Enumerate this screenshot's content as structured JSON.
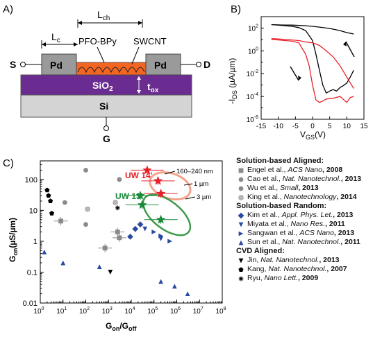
{
  "panel_a": {
    "label": "A)",
    "lch": "L",
    "lch_sub": "ch",
    "lc": "L",
    "lc_sub": "c",
    "pfo": "PFO-BPy",
    "swcnt": "SWCNT",
    "s": "S",
    "d": "D",
    "g": "G",
    "pd_left": "Pd",
    "pd_right": "Pd",
    "sio2": "SiO",
    "sio2_sub": "2",
    "tox": "t",
    "tox_sub": "ox",
    "si": "Si",
    "colors": {
      "pd": "#9a9a9a",
      "channel": "#f26522",
      "oxide": "#6b2c91",
      "si": "#d4d4d4"
    }
  },
  "panel_b": {
    "label": "B)",
    "ylabel": "-I",
    "ylabel_sub": "DS",
    "ylabel_unit": " (µA/µm)",
    "xlabel": "V",
    "xlabel_sub": "GS",
    "xlabel_unit": "(V)",
    "xticks": [
      "-15",
      "-10",
      "-5",
      "0",
      "5",
      "10",
      "15"
    ],
    "yticks": [
      {
        "base": "10",
        "exp": "2"
      },
      {
        "base": "10",
        "exp": "0"
      },
      {
        "base": "10",
        "exp": "-2"
      },
      {
        "base": "10",
        "exp": "-4"
      },
      {
        "base": "10",
        "exp": "-6"
      }
    ],
    "colors": {
      "black": "#000000",
      "red": "#e8202a"
    }
  },
  "panel_c": {
    "label": "C)",
    "ylabel": "G",
    "ylabel_sub": "on",
    "ylabel_unit": "(µS/µm)",
    "xlabel": "G",
    "xlabel_sub1": "on",
    "xlabel_mid": "/G",
    "xlabel_sub2": "off",
    "yticks": [
      "100",
      "10",
      "1",
      "0.1",
      "0.01"
    ],
    "xticks": [
      {
        "base": "10",
        "exp": "0"
      },
      {
        "base": "10",
        "exp": "1"
      },
      {
        "base": "10",
        "exp": "2"
      },
      {
        "base": "10",
        "exp": "3"
      },
      {
        "base": "10",
        "exp": "4"
      },
      {
        "base": "10",
        "exp": "5"
      },
      {
        "base": "10",
        "exp": "6"
      },
      {
        "base": "10",
        "exp": "7"
      },
      {
        "base": "10",
        "exp": "8"
      }
    ],
    "annotations": {
      "uw14": "UW 14'",
      "uw13": "UW 13'",
      "len1": "160–240 nm",
      "len2": "1 µm",
      "len3": "3 µm"
    },
    "colors": {
      "uw14": "#e8202a",
      "uw13": "#1a8a3a",
      "blue": "#2a4aa0",
      "gray": "#8a8a8a",
      "ellipse_red": "#f4a38a",
      "ellipse_green": "#3d9a4a"
    }
  },
  "legend": {
    "groups": [
      {
        "title": "Solution-based Aligned:",
        "entries": [
          {
            "marker": "square-gray",
            "author": "Engel et al., ",
            "journal": "ACS Nano",
            "year": ", 2008"
          },
          {
            "marker": "circle-gray",
            "author": "Cao et al., ",
            "journal": "Nat. Nanotechnol.",
            "year": ", 2013"
          },
          {
            "marker": "circle-gray",
            "author": "Wu et al., ",
            "journal": "Small",
            "year": ", 2013"
          },
          {
            "marker": "circle-lightgray",
            "author": "King et al., ",
            "journal": "Nanotechnology",
            "year": ", 2014"
          }
        ]
      },
      {
        "title": "Solution-based Random:",
        "entries": [
          {
            "marker": "diamond-blue",
            "author": "Kim et al., ",
            "journal": "Appl. Phys. Let.",
            "year": ", 2013"
          },
          {
            "marker": "triangle-down-blue",
            "author": "Miyata et al., ",
            "journal": "Nano Res.",
            "year": ", 2011"
          },
          {
            "marker": "triangle-right-blue",
            "author": "Sangwan et al., ",
            "journal": "ACS Nano",
            "year": ", 2013"
          },
          {
            "marker": "triangle-up-blue",
            "author": "Sun et al., ",
            "journal": "Nat. Nanotechnol.",
            "year": ", 2011"
          }
        ]
      },
      {
        "title": "CVD Aligned:",
        "entries": [
          {
            "marker": "triangle-down-black",
            "author": "Jin, ",
            "journal": "Nat. Nanotechnol.",
            "year": ", 2013"
          },
          {
            "marker": "pentagon-black",
            "author": "Kang, ",
            "journal": "Nat. Nanotechnol.",
            "year": ", 2007"
          },
          {
            "marker": "asterisk-black",
            "author": "Ryu, ",
            "journal": "Nano Lett.",
            "year": ", 2009"
          }
        ]
      }
    ]
  },
  "chart_data": [
    {
      "type": "line",
      "xlabel": "V_GS(V)",
      "ylabel": "-I_DS (µA/µm)",
      "xlim": [
        -15,
        15
      ],
      "ylim_log10": [
        -6,
        3
      ],
      "yscale": "log",
      "series": [
        {
          "color": "black",
          "x": [
            -12,
            -10,
            -8,
            -6,
            -4,
            -2,
            0,
            1,
            2,
            3,
            4,
            5,
            6,
            7,
            8,
            9,
            10,
            11,
            12
          ],
          "y": [
            200,
            180,
            160,
            140,
            110,
            60,
            8,
            0.5,
            0.02,
            0.001,
            0.0002,
            0.0003,
            0.0004,
            0.0003,
            0.0006,
            0.0009,
            0.0015,
            0.005,
            0.02
          ]
        },
        {
          "color": "black",
          "x": [
            -12,
            -10,
            -8,
            -6,
            -4,
            -2,
            0,
            2,
            4,
            6,
            8,
            10,
            12
          ],
          "y": [
            200,
            190,
            185,
            180,
            170,
            160,
            140,
            120,
            100,
            80,
            60,
            40,
            30
          ]
        },
        {
          "color": "red",
          "x": [
            -12,
            -10,
            -8,
            -6,
            -4,
            -2,
            -1,
            0,
            1,
            2,
            3,
            4,
            6,
            8,
            10,
            11,
            12
          ],
          "y": [
            10,
            9,
            8,
            7,
            5,
            0.5,
            0.05,
            0.001,
            5e-05,
            3e-05,
            4e-05,
            6e-05,
            7e-05,
            0.0001,
            3e-05,
            8e-05,
            0.0001
          ]
        },
        {
          "color": "red",
          "x": [
            -12,
            -10,
            -8,
            -6,
            -4,
            -2,
            0,
            2,
            4,
            6,
            8,
            10,
            12
          ],
          "y": [
            12,
            11,
            10,
            9,
            8,
            6,
            5,
            3,
            1,
            0.3,
            0.05,
            0.005,
            0.0005
          ]
        }
      ]
    },
    {
      "type": "scatter",
      "xlabel": "G_on/G_off",
      "ylabel": "G_on(µS/µm)",
      "xscale": "log",
      "yscale": "log",
      "xlim": [
        1,
        100000000
      ],
      "ylim": [
        0.01,
        400
      ],
      "series": [
        {
          "name": "UW 14'",
          "marker": "star-red",
          "x": [
            50000,
            150000,
            200000
          ],
          "y": [
            200,
            90,
            35
          ]
        },
        {
          "name": "UW 13'",
          "marker": "star-green",
          "x": [
            25000,
            30000,
            200000
          ],
          "y": [
            30,
            15,
            5
          ]
        },
        {
          "name": "Engel et al., ACS Nano, 2008",
          "marker": "square-gray",
          "x": [
            8,
            2500,
            3000,
            700
          ],
          "y": [
            4.5,
            2,
            1.3,
            0.6
          ]
        },
        {
          "name": "Cao et al., Nat. Nanotechnol., 2013",
          "marker": "circle-gray",
          "x": [
            100,
            3000
          ],
          "y": [
            200,
            100
          ]
        },
        {
          "name": "Wu et al., Small, 2013",
          "marker": "circle-gray",
          "x": [
            12,
            100
          ],
          "y": [
            18,
            3.5
          ]
        },
        {
          "name": "King et al., Nanotechnology, 2014",
          "marker": "circle-lightgray",
          "x": [
            2000,
            120
          ],
          "y": [
            18,
            11
          ]
        },
        {
          "name": "Kim et al., Appl. Phys. Let., 2013",
          "marker": "diamond-blue",
          "x": [
            25000,
            15000,
            9000
          ],
          "y": [
            3.5,
            2.5,
            1.4
          ]
        },
        {
          "name": "Miyata et al., Nano Res., 2011",
          "marker": "triangle-down-blue",
          "x": [
            40000,
            200000
          ],
          "y": [
            2.5,
            1.2
          ]
        },
        {
          "name": "Sangwan et al., ACS Nano, 2013",
          "marker": "triangle-right-blue",
          "x": [
            100000,
            200000,
            500000
          ],
          "y": [
            2,
            1.5,
            1
          ]
        },
        {
          "name": "Sun et al., Nat. Nanotechnol., 2011",
          "marker": "triangle-up-blue",
          "x": [
            1.5,
            10,
            400,
            200000,
            800000,
            3000000
          ],
          "y": [
            0.45,
            0.2,
            0.15,
            0.05,
            0.035,
            0.02
          ]
        },
        {
          "name": "Jin, Nat. Nanotechnol., 2013",
          "marker": "triangle-down-black",
          "x": [
            1200
          ],
          "y": [
            0.1
          ]
        },
        {
          "name": "Kang, Nat. Nanotechnol., 2007",
          "marker": "pentagon-black",
          "x": [
            2,
            2.3,
            2.8,
            3.2
          ],
          "y": [
            45,
            30,
            20,
            8
          ]
        },
        {
          "name": "Ryu, Nano Lett., 2009",
          "marker": "asterisk-black",
          "x": [
            2500
          ],
          "y": [
            12
          ]
        }
      ]
    }
  ]
}
